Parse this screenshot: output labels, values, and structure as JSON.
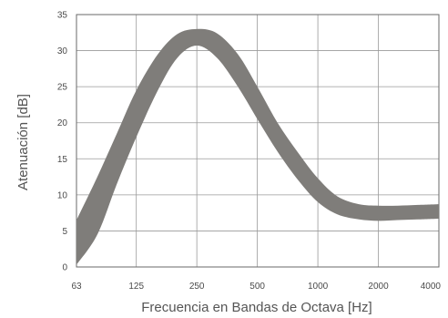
{
  "chart_data": {
    "type": "area",
    "title": "",
    "xlabel": "Frecuencia en Bandas de Octava [Hz]",
    "ylabel": "Atenuación [dB]",
    "x_scale": "log2",
    "x_ticks": [
      "63",
      "125",
      "250",
      "500",
      "1000",
      "2000",
      "4000"
    ],
    "x_values": [
      63,
      125,
      250,
      500,
      1000,
      2000,
      4000
    ],
    "y_ticks": [
      "0",
      "5",
      "10",
      "15",
      "20",
      "25",
      "30",
      "35"
    ],
    "ylim": [
      0,
      35
    ],
    "grid": true,
    "band_color": "#7f7d7a",
    "series": [
      {
        "x": [
          63,
          80,
          100,
          125,
          160,
          200,
          250,
          315,
          400,
          500,
          630,
          800,
          1000,
          1250,
          1600,
          2000,
          2500,
          3150,
          4000
        ],
        "upper": [
          6.5,
          12.5,
          18.5,
          24.5,
          29.5,
          32.3,
          33.0,
          32.4,
          29.5,
          25.0,
          20.0,
          15.8,
          12.3,
          9.8,
          8.7,
          8.5,
          8.5,
          8.6,
          8.7
        ],
        "lower": [
          0.3,
          4.5,
          11.5,
          18.0,
          24.5,
          29.0,
          30.7,
          29.0,
          25.0,
          20.5,
          16.0,
          12.0,
          9.0,
          7.3,
          6.6,
          6.4,
          6.5,
          6.6,
          6.7
        ]
      }
    ]
  }
}
